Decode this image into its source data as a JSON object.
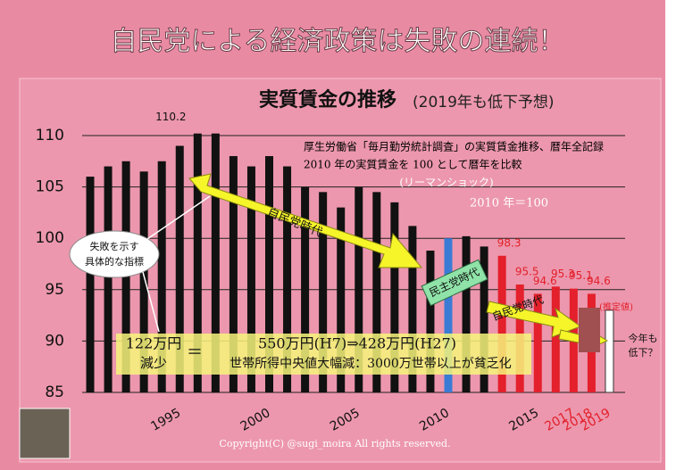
{
  "chart_data": {
    "type": "bar",
    "title": "自民党による経済政策は失敗の連続！",
    "subtitle": "実質賃金の推移",
    "subtitle_note": "(2019年も低下予想)",
    "notes": [
      "厚生労働省「毎月勤労統計調査」の実質賃金推移、暦年全記録",
      "2010 年の実質賃金を 100 として暦年を比較"
    ],
    "categories": [
      null,
      null,
      null,
      null,
      null,
      "1995",
      null,
      null,
      null,
      null,
      "2000",
      null,
      null,
      null,
      null,
      "2005",
      null,
      null,
      null,
      null,
      "2010",
      null,
      null,
      null,
      null,
      "2015",
      null,
      "2017",
      "2018",
      "2019"
    ],
    "values": [
      106.0,
      107.0,
      107.5,
      106.5,
      107.5,
      109.0,
      110.2,
      110.2,
      108.0,
      107.0,
      108.0,
      107.0,
      105.0,
      104.5,
      103.0,
      105.0,
      104.5,
      103.5,
      101.2,
      98.8,
      100,
      100.2,
      99.2,
      98.3,
      95.5,
      94.6,
      95.3,
      95.1,
      94.6,
      93.0
    ],
    "value_labels": [
      null,
      null,
      null,
      null,
      null,
      null,
      "110.2",
      null,
      null,
      null,
      null,
      null,
      null,
      null,
      null,
      null,
      null,
      null,
      null,
      null,
      null,
      null,
      null,
      "98.3",
      "95.5",
      "94.6",
      "95.3",
      "95.1",
      "94.6",
      null
    ],
    "colors": [
      "#111",
      "#111",
      "#111",
      "#111",
      "#111",
      "#111",
      "#111",
      "#111",
      "#111",
      "#111",
      "#111",
      "#111",
      "#111",
      "#111",
      "#111",
      "#111",
      "#111",
      "#111",
      "#111",
      "#111",
      "#3a7bd5",
      "#111",
      "#111",
      "#e3202b",
      "#e3202b",
      "#e3202b",
      "#e3202b",
      "#e3202b",
      "#e3202b",
      "#ffffff"
    ],
    "ylim": [
      85,
      110
    ],
    "yticks": [
      85,
      90,
      95,
      100,
      105,
      110
    ],
    "grid": true,
    "annotations": [
      "(リーマンショック)",
      "2010 年＝100",
      "自民党時代",
      "民主党時代",
      "自民党時代",
      "失敗を示す",
      "具体的な指標",
      "(推定値)",
      "今年も",
      "低下？",
      "122万円",
      "減少",
      "＝",
      "550万円(H7)⇒428万円(H27)",
      "世帯所得中央値大幅減：3000万世帯以上が貧乏化",
      "Copyright(C) @sugi_moira All rights reserved."
    ]
  }
}
